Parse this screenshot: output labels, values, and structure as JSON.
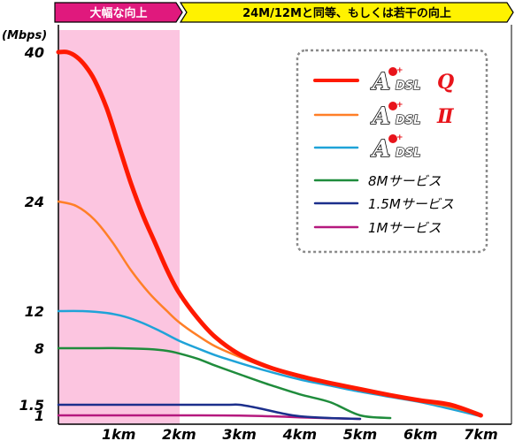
{
  "chart_data": {
    "type": "line",
    "ylabel": "(Mbps)",
    "y_ticks": [
      {
        "value": 40,
        "label": "40"
      },
      {
        "value": 24,
        "label": "24"
      },
      {
        "value": 12,
        "label": "12"
      },
      {
        "value": 8,
        "label": "8"
      },
      {
        "value": 1.5,
        "label": "1.5"
      },
      {
        "value": 1,
        "label": "1"
      }
    ],
    "x_ticks": [
      {
        "value": 1,
        "label": "1km"
      },
      {
        "value": 2,
        "label": "2km"
      },
      {
        "value": 3,
        "label": "3km"
      },
      {
        "value": 4,
        "label": "4km"
      },
      {
        "value": 5,
        "label": "5km"
      },
      {
        "value": 6,
        "label": "6km"
      },
      {
        "value": 7,
        "label": "7km"
      }
    ],
    "xlim": [
      0,
      7.3
    ],
    "bands": [
      {
        "label": "大幅な向上",
        "x_start": 0,
        "x_end": 2,
        "fill": "#fcc5e0",
        "header_fill": "#e0197d",
        "header_text_color": "#ffffff"
      },
      {
        "label": "24M/12Mと同等、もしくは若干の向上",
        "x_start": 2,
        "x_end": 7.3,
        "fill": "none",
        "header_fill": "#fff200",
        "header_text_color": "#000000"
      }
    ],
    "series": [
      {
        "name": "ADSL Q",
        "logo": true,
        "logo_suffix": "Q",
        "color": "#ff1a00",
        "width": 5,
        "x": [
          0,
          0.15,
          0.3,
          0.45,
          0.6,
          0.8,
          1.0,
          1.2,
          1.4,
          1.6,
          1.8,
          2.0,
          2.3,
          2.6,
          3.0,
          3.5,
          4.0,
          4.5,
          5.0,
          5.5,
          6.0,
          6.5,
          7.0
        ],
        "y": [
          40,
          40,
          39.5,
          38.5,
          37,
          34,
          30,
          26,
          22.5,
          19.5,
          16.5,
          14,
          11.3,
          9.2,
          7.3,
          5.8,
          4.8,
          4.0,
          3.3,
          2.6,
          2.0,
          1.5,
          1.0
        ]
      },
      {
        "name": "ADSL II",
        "logo": true,
        "logo_suffix": "Ⅱ",
        "color": "#ff7f27",
        "width": 2.5,
        "x": [
          0,
          0.3,
          0.6,
          0.9,
          1.2,
          1.5,
          1.8,
          2.0,
          2.3,
          2.6,
          3.0,
          3.5,
          4.0,
          4.5,
          5.0,
          5.5,
          6.0,
          6.5,
          7.0
        ],
        "y": [
          24,
          23.5,
          22,
          19.5,
          16.5,
          14,
          12,
          10.8,
          9.4,
          8.2,
          7.0,
          5.7,
          4.7,
          3.9,
          3.2,
          2.5,
          1.9,
          1.4,
          1.0
        ]
      },
      {
        "name": "ADSL",
        "logo": true,
        "logo_suffix": "",
        "color": "#1fa3d8",
        "width": 2.5,
        "x": [
          0,
          0.4,
          0.8,
          1.1,
          1.4,
          1.7,
          2.0,
          2.3,
          2.6,
          3.0,
          3.5,
          4.0,
          4.5,
          5.0,
          5.5,
          6.0,
          6.5,
          7.0
        ],
        "y": [
          12,
          12,
          11.8,
          11.4,
          10.7,
          9.8,
          8.8,
          8.0,
          7.2,
          6.3,
          5.3,
          4.4,
          3.7,
          3.0,
          2.4,
          1.8,
          1.3,
          0.9
        ]
      },
      {
        "name": "8Mサービス",
        "logo": false,
        "color": "#1f8c3c",
        "width": 2.5,
        "x": [
          0,
          0.5,
          1.0,
          1.5,
          1.8,
          2.0,
          2.3,
          2.6,
          3.0,
          3.5,
          4.0,
          4.5,
          5.0,
          5.5
        ],
        "y": [
          8,
          8,
          8,
          7.9,
          7.7,
          7.4,
          6.8,
          6.0,
          5.0,
          3.8,
          2.7,
          1.8,
          1.0,
          0.7
        ]
      },
      {
        "name": "1.5Mサービス",
        "logo": false,
        "color": "#1c2f8c",
        "width": 2.5,
        "x": [
          0,
          1.0,
          2.0,
          2.8,
          3.0,
          3.3,
          3.7,
          4.0,
          4.5,
          5.0
        ],
        "y": [
          1.5,
          1.5,
          1.5,
          1.5,
          1.5,
          1.35,
          1.1,
          0.9,
          0.7,
          0.6
        ]
      },
      {
        "name": "1Mサービス",
        "logo": false,
        "color": "#b5197e",
        "width": 2.5,
        "x": [
          0,
          1.0,
          2.0,
          3.0,
          3.5,
          4.0,
          4.5,
          5.0
        ],
        "y": [
          1,
          1,
          1,
          0.98,
          0.9,
          0.78,
          0.68,
          0.6
        ]
      }
    ],
    "legend_position": "top-right",
    "grid": false
  }
}
